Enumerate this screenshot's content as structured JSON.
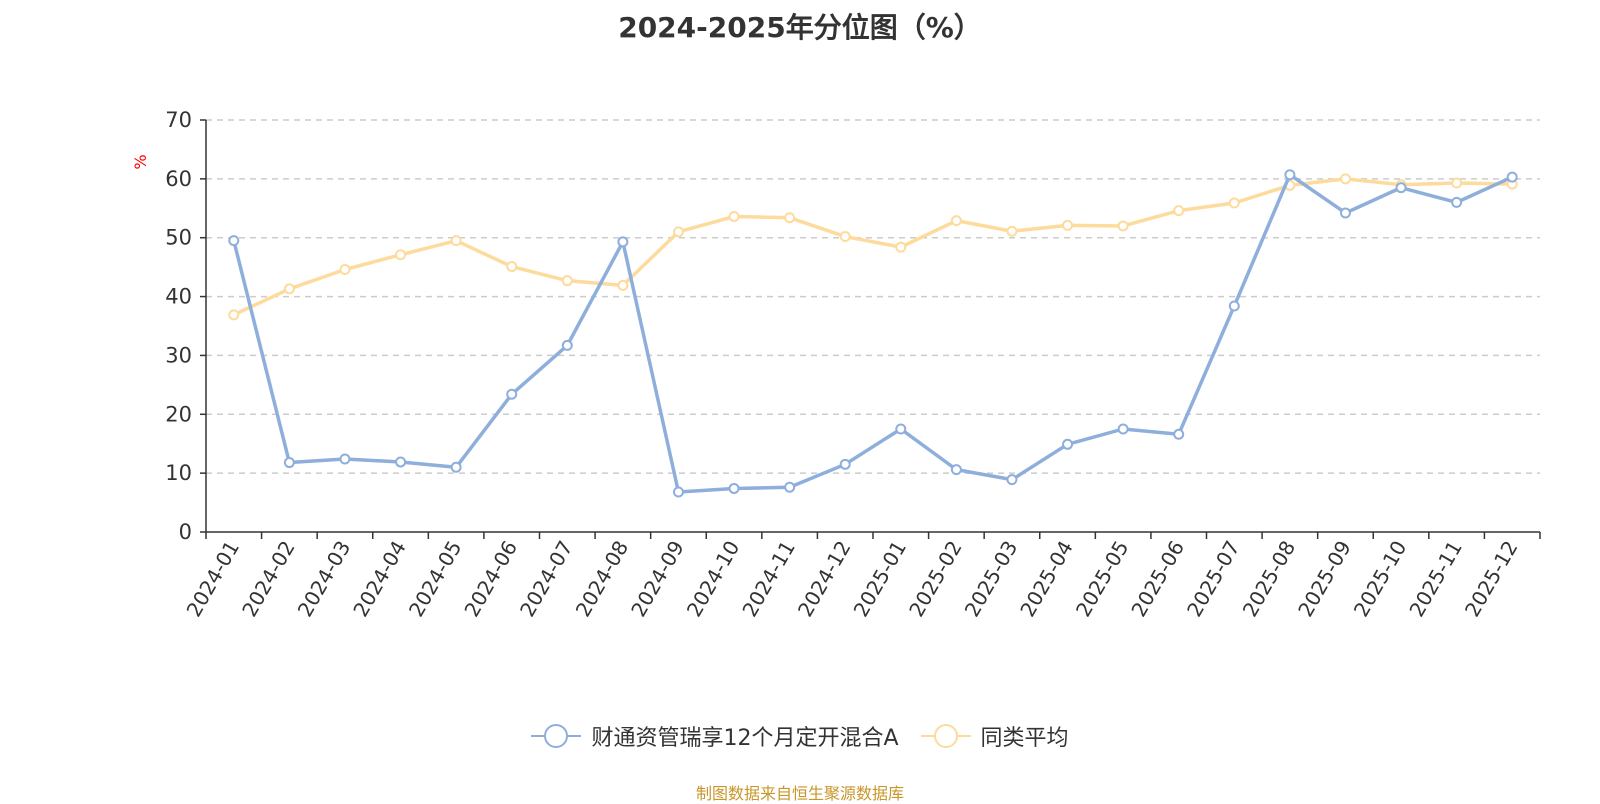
{
  "chart_data": {
    "type": "line",
    "title": "2024-2025年分位图（%）",
    "ylabel": "%",
    "xlabel": "",
    "ylim": [
      0,
      70
    ],
    "yticks": [
      0,
      10,
      20,
      30,
      40,
      50,
      60,
      70
    ],
    "grid": "horizontal dashed",
    "legend_position": "bottom",
    "categories": [
      "2024-01",
      "2024-02",
      "2024-03",
      "2024-04",
      "2024-05",
      "2024-06",
      "2024-07",
      "2024-08",
      "2024-09",
      "2024-10",
      "2024-11",
      "2024-12",
      "2025-01",
      "2025-02",
      "2025-03",
      "2025-04",
      "2025-05",
      "2025-06",
      "2025-07",
      "2025-08",
      "2025-09",
      "2025-10",
      "2025-11",
      "2025-12"
    ],
    "series": [
      {
        "name": "财通资管瑞享12个月定开混合A",
        "color": "#8eaedb",
        "values": [
          49.5,
          11.8,
          12.4,
          11.9,
          11.0,
          23.4,
          31.7,
          49.3,
          6.8,
          7.4,
          7.6,
          11.5,
          17.5,
          10.6,
          8.9,
          14.9,
          17.5,
          16.6,
          38.4,
          60.7,
          54.2,
          58.5,
          56.0,
          60.3
        ]
      },
      {
        "name": "同类平均",
        "color": "#fddb9c",
        "values": [
          36.9,
          41.3,
          44.6,
          47.1,
          49.5,
          45.1,
          42.7,
          41.9,
          51.0,
          53.6,
          53.4,
          50.2,
          48.4,
          52.9,
          51.1,
          52.1,
          52.0,
          54.6,
          55.9,
          58.9,
          60.0,
          59.0,
          59.3,
          59.1
        ]
      }
    ]
  },
  "footer": {
    "source": "制图数据来自恒生聚源数据库"
  }
}
